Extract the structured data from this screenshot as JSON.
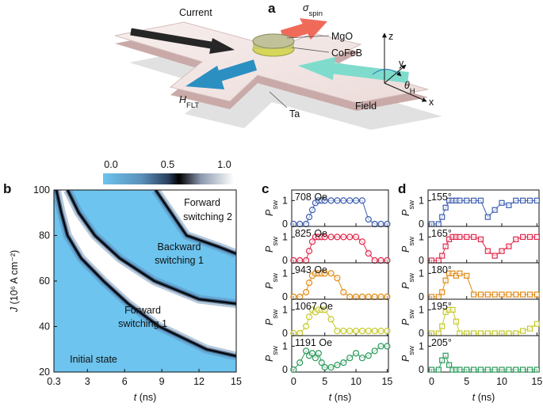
{
  "panel_a": {
    "label": "a",
    "current": "Current",
    "sigma": "σ",
    "sigma_sub": "spin",
    "mgo": "MgO",
    "cofeb": "CoFeB",
    "z": "z",
    "y": "y",
    "theta": "θ",
    "theta_sub": "H",
    "hflt": "H",
    "hflt_sub": "FLT",
    "ta": "Ta",
    "field": "Field",
    "x": "x"
  },
  "chart_data": [
    {
      "type": "contour",
      "label": "b",
      "colorbar_ticks": [
        {
          "value": 0,
          "label": "0.0"
        },
        0.5,
        {
          "value": 1,
          "label": "1.0"
        }
      ],
      "xlim": [
        0.3,
        15
      ],
      "xticks": [
        0.3,
        3,
        6,
        9,
        12,
        15
      ],
      "ylim": [
        20,
        100
      ],
      "yticks": [
        20,
        40,
        60,
        80,
        100
      ],
      "xlabel_symbol": "t",
      "xlabel_unit": " (ns)",
      "ylabel_symbol": "J",
      "ylabel_unit": " (10⁶ A cm⁻²)",
      "contours": [
        {
          "t": [
            0.5,
            0.9,
            1.4,
            2.5,
            4.3,
            6.3,
            8.8,
            12.6,
            15
          ],
          "J": [
            100,
            90,
            80,
            70,
            60,
            50,
            40,
            30,
            27
          ]
        },
        {
          "t": [
            1.4,
            2.3,
            3.6,
            5.6,
            8.4,
            12,
            15
          ],
          "J": [
            100,
            90,
            80,
            70,
            60,
            52,
            50
          ]
        },
        {
          "t": [
            8.5,
            9.5,
            11,
            13.6,
            15
          ],
          "J": [
            100,
            92,
            80,
            75,
            72
          ]
        }
      ],
      "annotations": [
        [
          "Forward",
          "switching 2"
        ],
        [
          "Backward",
          "switching 1"
        ],
        [
          "Forward",
          "switching 1"
        ],
        [
          "Initial state"
        ]
      ]
    },
    {
      "type": "line",
      "label": "c",
      "marker": "circle",
      "x": [
        0,
        1,
        2,
        2.5,
        3,
        3.5,
        4,
        4.5,
        5,
        6,
        7,
        8,
        9,
        10,
        11,
        12,
        13,
        14,
        15
      ],
      "series": [
        {
          "name": "708 Oe",
          "color": "#3d5eb0",
          "values": [
            0,
            0,
            0,
            0.3,
            0.6,
            0.9,
            1,
            1,
            1,
            1,
            1,
            1,
            1,
            1,
            1,
            0.2,
            0,
            0,
            0
          ]
        },
        {
          "name": "825 Oe",
          "color": "#e0284c",
          "values": [
            0,
            0,
            0,
            0.4,
            0.8,
            1,
            1,
            1,
            1,
            1,
            1,
            1,
            1,
            1,
            0.8,
            0.3,
            0,
            0,
            0
          ]
        },
        {
          "name": "943 Oe",
          "color": "#e08a16",
          "values": [
            0,
            0,
            0.2,
            0.6,
            0.9,
            1,
            1,
            1,
            1,
            1,
            0.8,
            0.2,
            0,
            0,
            0,
            0,
            0,
            0,
            0
          ]
        },
        {
          "name": "1067 Oe",
          "color": "#c6c92c",
          "values": [
            0,
            0,
            0.3,
            0.7,
            1,
            0.9,
            1,
            1,
            1,
            0.6,
            0.1,
            0.1,
            0.1,
            0.1,
            0.1,
            0.1,
            0.1,
            0.1,
            0.1
          ]
        },
        {
          "name": "1191 Oe",
          "color": "#2a9a5a",
          "values": [
            0,
            0.3,
            0.8,
            0.6,
            0.7,
            0.5,
            0.7,
            0.3,
            0.1,
            0.1,
            0.2,
            0.3,
            0.5,
            0.7,
            0.5,
            0.6,
            0.8,
            1,
            1
          ]
        }
      ],
      "xlim": [
        -0.3,
        15.2
      ],
      "xticks": [
        0,
        5,
        10,
        15
      ],
      "ylim": [
        -0.1,
        1.45
      ],
      "yticks": [
        0,
        1
      ],
      "ylabel": "P",
      "ylabel_sub": "sw",
      "xlabel_symbol": "t",
      "xlabel_unit": " (ns)"
    },
    {
      "type": "line",
      "label": "d",
      "marker": "square",
      "x": [
        0,
        1,
        1.5,
        2,
        2.5,
        3,
        3.5,
        4,
        5,
        6,
        7,
        8,
        9,
        10,
        11,
        12,
        13,
        14,
        15
      ],
      "series": [
        {
          "name": "155°",
          "color": "#3d5eb0",
          "values": [
            0,
            0,
            0.3,
            0.7,
            1,
            1,
            1,
            1,
            1,
            1,
            1,
            0.3,
            0.6,
            0.9,
            0.8,
            1,
            1,
            1,
            1
          ]
        },
        {
          "name": "165°",
          "color": "#e0284c",
          "values": [
            0,
            0,
            0.2,
            0.6,
            0.9,
            1,
            1,
            1,
            1,
            1,
            0.9,
            0.4,
            0.2,
            0.4,
            0.6,
            0.9,
            1,
            1,
            1
          ]
        },
        {
          "name": "180°",
          "color": "#e08a16",
          "values": [
            0,
            0,
            0.2,
            0.7,
            1,
            1,
            0.9,
            1,
            0.9,
            0.1,
            0.1,
            0.1,
            0.1,
            0.1,
            0.1,
            0.1,
            0.1,
            0.1,
            0.1
          ]
        },
        {
          "name": "195°",
          "color": "#c6c92c",
          "values": [
            0,
            0,
            0.3,
            0.9,
            1,
            1,
            0.5,
            0,
            0,
            0,
            0,
            0,
            0,
            0,
            0,
            0,
            0.1,
            0.2,
            0.4
          ]
        },
        {
          "name": "205°",
          "color": "#2a9a5a",
          "values": [
            0,
            0,
            0.4,
            0.6,
            0.2,
            0,
            0,
            0,
            0,
            0,
            0,
            0,
            0,
            0,
            0,
            0,
            0,
            0,
            0
          ]
        }
      ],
      "xlim": [
        -0.5,
        15.3
      ],
      "xticks": [
        0,
        5,
        10,
        15
      ],
      "ylim": [
        -0.1,
        1.45
      ],
      "yticks": [
        0,
        1
      ],
      "ylabel": "P",
      "ylabel_sub": "sw",
      "xlabel_symbol": "t",
      "xlabel_unit": " (ns)"
    }
  ]
}
